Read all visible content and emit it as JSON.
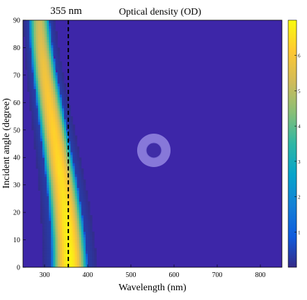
{
  "chart_data": {
    "type": "heatmap",
    "title": "Optical density (OD)",
    "xlabel": "Wavelength (nm)",
    "ylabel": "Incident angle (degree)",
    "xlim": [
      250,
      850
    ],
    "ylim": [
      0,
      90
    ],
    "x_ticks": [
      300,
      400,
      500,
      600,
      700,
      800
    ],
    "y_ticks": [
      0,
      10,
      20,
      30,
      40,
      50,
      60,
      70,
      80,
      90
    ],
    "colorbar": {
      "range": [
        0,
        7
      ],
      "ticks": [
        1,
        2,
        3,
        4,
        5,
        6
      ],
      "colormap": "parula",
      "colors": [
        "#352a87",
        "#0f5cdd",
        "#1481d6",
        "#06a4ca",
        "#2eb7a4",
        "#87bf77",
        "#d1bb59",
        "#fec832",
        "#f9fb0e"
      ]
    },
    "background_color": "#3d26a8",
    "annotation": {
      "label": "355 nm",
      "x": 355,
      "line_style": "dashed"
    },
    "band_profile": {
      "description_values": "Each row: incident angle (deg), band center wavelength (nm), half-width (nm), peak OD",
      "rows": [
        [
          0,
          358,
          42,
          6.9
        ],
        [
          5,
          357,
          41,
          6.9
        ],
        [
          10,
          355,
          40,
          6.8
        ],
        [
          15,
          352,
          39,
          6.8
        ],
        [
          20,
          349,
          38,
          6.7
        ],
        [
          25,
          345,
          37,
          6.6
        ],
        [
          30,
          341,
          36,
          6.5
        ],
        [
          35,
          336,
          35,
          6.5
        ],
        [
          40,
          331,
          34,
          6.4
        ],
        [
          45,
          326,
          33,
          6.3
        ],
        [
          50,
          321,
          32,
          6.3
        ],
        [
          55,
          316,
          31,
          6.2
        ],
        [
          60,
          311,
          30,
          6.1
        ],
        [
          65,
          306,
          29,
          6.0
        ],
        [
          70,
          301,
          28,
          5.9
        ],
        [
          75,
          297,
          27,
          5.8
        ],
        [
          80,
          293,
          26,
          5.6
        ],
        [
          85,
          290,
          25,
          5.4
        ],
        [
          90,
          288,
          24,
          5.2
        ]
      ]
    }
  }
}
